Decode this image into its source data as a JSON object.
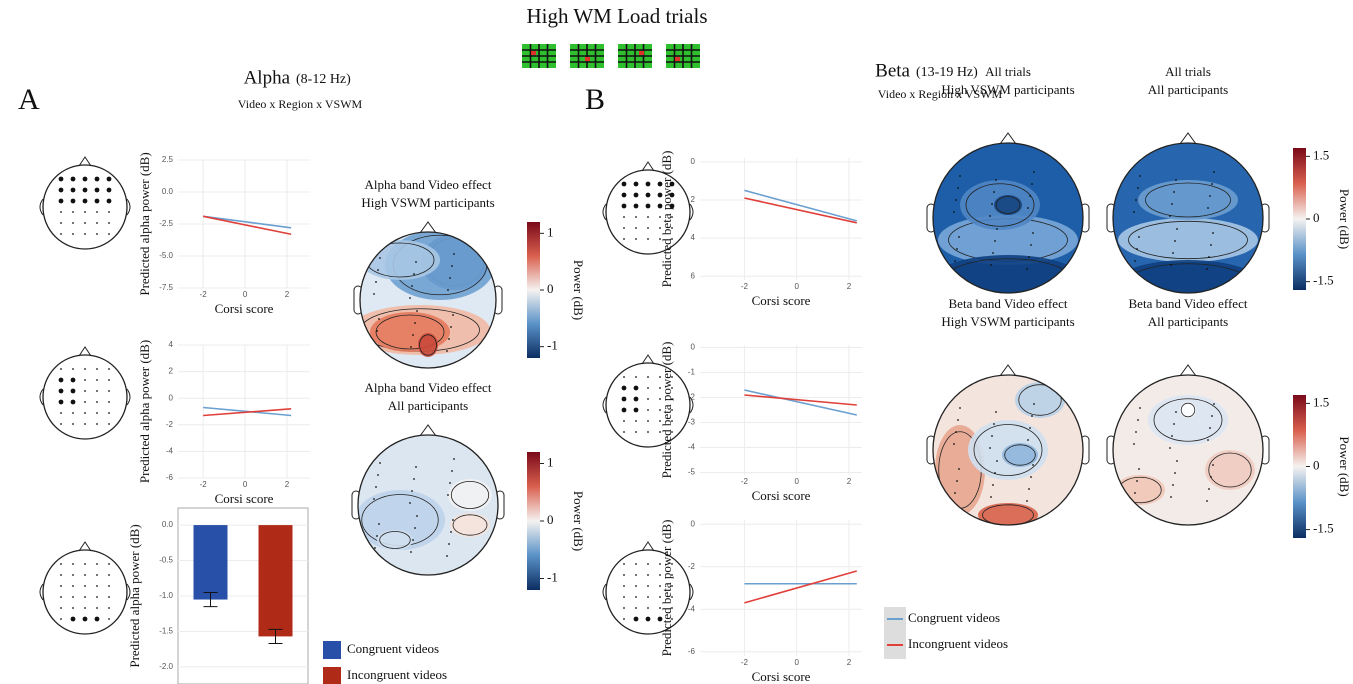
{
  "header": {
    "title": "High WM Load trials"
  },
  "panels": [
    {
      "letter": "A",
      "band": "Alpha",
      "range": "(8-12 Hz)",
      "subtitle": "Video x Region x VSWM",
      "topomaps": [
        {
          "title": [
            "Alpha band Video effect",
            "High VSWM participants"
          ]
        },
        {
          "title": [
            "Alpha band Video effect",
            "All participants"
          ]
        }
      ],
      "colorbars": [
        {
          "lim": [
            -1.2,
            1.2
          ],
          "ticks": [
            1,
            0,
            -1
          ],
          "label": "Power (dB)"
        },
        {
          "lim": [
            -1.2,
            1.2
          ],
          "ticks": [
            1,
            0,
            -1
          ],
          "label": "Power (dB)"
        }
      ]
    },
    {
      "letter": "B",
      "band": "Beta",
      "range": "(13-19 Hz)",
      "subtitle": "Video x Region x VSWM",
      "topomaps": [
        {
          "title": [
            "All trials",
            "High VSWM participants"
          ]
        },
        {
          "title": [
            "All trials",
            "All participants"
          ]
        },
        {
          "title": [
            "Beta band Video effect",
            "High VSWM participants"
          ]
        },
        {
          "title": [
            "Beta band Video effect",
            "All participants"
          ]
        }
      ],
      "colorbars": [
        {
          "lim": [
            -1.7,
            1.7
          ],
          "ticks": [
            1.5,
            0,
            -1.5
          ],
          "label": "Power (dB)"
        },
        {
          "lim": [
            -1.7,
            1.7
          ],
          "ticks": [
            1.5,
            0,
            -1.5
          ],
          "label": "Power (dB)"
        }
      ]
    }
  ],
  "chart_data": [
    {
      "type": "line",
      "ylabel": "Predicted alpha power (dB)",
      "xlabel": "Corsi score",
      "x": [
        -2,
        2.2
      ],
      "xlim": [
        -3.2,
        3.1
      ],
      "xticks": [
        -2,
        0,
        2
      ],
      "ylim": [
        -7.5,
        2.5
      ],
      "yticks": [
        2.5,
        {
          "value": 0,
          "label": "0.0"
        },
        -2.5,
        {
          "value": -5,
          "label": "-5.0"
        },
        -7.5
      ],
      "series": [
        {
          "color": "#6a9fd0",
          "values": [
            -1.9,
            -2.8
          ]
        },
        {
          "color": "#e0403a",
          "values": [
            -1.9,
            -3.3
          ]
        }
      ]
    },
    {
      "type": "line",
      "ylabel": "Predicted alpha power (dB)",
      "xlabel": "Corsi score",
      "x": [
        -2,
        2.2
      ],
      "xlim": [
        -3.2,
        3.1
      ],
      "xticks": [
        -2,
        0,
        2
      ],
      "ylim": [
        -6,
        4
      ],
      "yticks": [
        4,
        2,
        0,
        -2,
        -4,
        -6
      ],
      "series": [
        {
          "color": "#6a9fd0",
          "values": [
            -0.7,
            -1.3
          ]
        },
        {
          "color": "#e0403a",
          "values": [
            -1.3,
            -0.8
          ]
        }
      ]
    },
    {
      "type": "bar",
      "ylabel": "Predicted alpha power (dB)",
      "ylim": [
        -2.1,
        0.1
      ],
      "yticks": [
        {
          "value": 0,
          "label": "0.0"
        },
        -0.5,
        {
          "value": -1,
          "label": "-1.0"
        },
        -1.5,
        {
          "value": -2,
          "label": "-2.0"
        }
      ],
      "series": [
        {
          "name": "Congruent videos",
          "color": "#2850a8",
          "values": [
            -1.05
          ],
          "errors": [
            0.1
          ]
        },
        {
          "name": "Incongruent videos",
          "color": "#b02a18",
          "values": [
            -1.57
          ],
          "errors": [
            0.1
          ]
        }
      ]
    },
    {
      "type": "line",
      "ylabel": "Predicted beta power (dB)",
      "xlabel": "Corsi score",
      "x": [
        -2,
        2.3
      ],
      "xlim": [
        -3.7,
        2.5
      ],
      "xticks": [
        -2,
        0,
        2
      ],
      "ylim": [
        6.2,
        -0.2
      ],
      "yticks": [
        0,
        2,
        4,
        6
      ],
      "series": [
        {
          "color": "#6a9fd0",
          "values": [
            1.5,
            3.1
          ]
        },
        {
          "color": "#e0403a",
          "values": [
            1.9,
            3.2
          ]
        }
      ]
    },
    {
      "type": "line",
      "ylabel": "Predicted beta power (dB)",
      "xlabel": "Corsi score",
      "x": [
        -2,
        2.3
      ],
      "xlim": [
        -3.7,
        2.5
      ],
      "xticks": [
        -2,
        0,
        2
      ],
      "ylim": [
        -5.1,
        0.1
      ],
      "yticks": [
        0,
        -1,
        -2,
        -3,
        -4,
        -5
      ],
      "series": [
        {
          "color": "#6a9fd0",
          "values": [
            -1.7,
            -2.7
          ]
        },
        {
          "color": "#e0403a",
          "values": [
            -1.9,
            -2.3
          ]
        }
      ]
    },
    {
      "type": "line",
      "ylabel": "Predicted beta power (dB)",
      "xlabel": "Corsi score",
      "x": [
        -2,
        2.3
      ],
      "xlim": [
        -3.7,
        2.5
      ],
      "xticks": [
        -2,
        0,
        2
      ],
      "ylim": [
        -6.2,
        0.2
      ],
      "yticks": [
        0,
        -2,
        -4,
        -6
      ],
      "series": [
        {
          "name": "Congruent videos",
          "color": "#6a9fd0",
          "values": [
            -2.8,
            -2.8
          ]
        },
        {
          "name": "Incongruent videos",
          "color": "#e0403a",
          "values": [
            -3.7,
            -2.2
          ]
        }
      ]
    }
  ]
}
